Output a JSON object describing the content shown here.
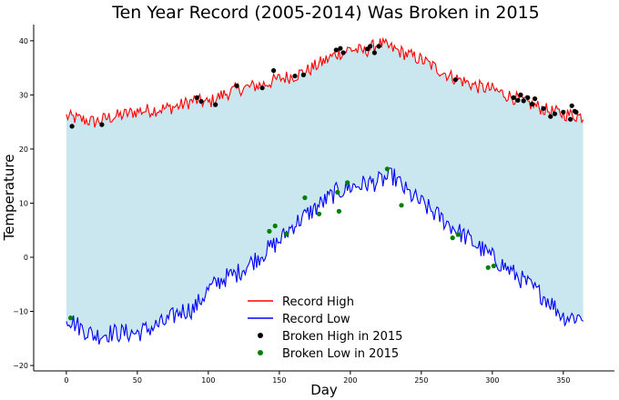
{
  "chart_data": {
    "type": "line",
    "title": "Ten Year Record (2005-2014) Was Broken in 2015",
    "xlabel": "Day",
    "ylabel": "Temperature",
    "xlim": [
      -23,
      386
    ],
    "ylim": [
      -21,
      43
    ],
    "x_ticks": [
      0,
      50,
      100,
      150,
      200,
      250,
      300,
      350
    ],
    "y_ticks": [
      -20,
      -10,
      0,
      10,
      20,
      30,
      40
    ],
    "grid": false,
    "legend_position": "lower-center",
    "fill_between": {
      "color": "#add8e6",
      "opacity": 0.65
    },
    "series": [
      {
        "name": "Record High",
        "kind": "line",
        "color": "#ff0000",
        "x": [
          0,
          10,
          20,
          30,
          40,
          50,
          60,
          70,
          80,
          90,
          100,
          110,
          120,
          130,
          140,
          150,
          160,
          170,
          180,
          190,
          200,
          210,
          220,
          230,
          240,
          250,
          260,
          270,
          280,
          290,
          300,
          310,
          320,
          330,
          340,
          350,
          364
        ],
        "y": [
          26,
          25.5,
          25,
          25.8,
          26.3,
          27,
          27.2,
          27.5,
          28,
          29,
          28.5,
          30,
          31,
          31.5,
          32,
          33,
          33.5,
          34.5,
          36,
          37.5,
          38.5,
          38,
          39.5,
          38.5,
          37.5,
          36.5,
          35,
          33.5,
          32.5,
          31.5,
          31,
          30,
          29,
          28,
          27,
          26.5,
          26
        ]
      },
      {
        "name": "Record Low",
        "kind": "line",
        "color": "#0000ff",
        "x": [
          0,
          10,
          20,
          30,
          40,
          50,
          60,
          70,
          80,
          90,
          100,
          110,
          120,
          130,
          140,
          150,
          160,
          170,
          180,
          190,
          200,
          210,
          220,
          230,
          240,
          250,
          260,
          270,
          280,
          290,
          300,
          310,
          320,
          330,
          340,
          350,
          364
        ],
        "y": [
          -11,
          -13,
          -14.5,
          -14,
          -14,
          -14,
          -13,
          -12,
          -10,
          -9.5,
          -6,
          -4,
          -3,
          -1,
          1,
          3,
          6,
          8,
          10,
          12,
          13,
          13.5,
          14,
          15,
          12,
          10,
          8,
          6,
          4,
          2,
          0,
          -2,
          -4,
          -6,
          -8,
          -11,
          -11
        ]
      },
      {
        "name": "Broken High in 2015",
        "kind": "scatter",
        "color": "#000000",
        "x": [
          4,
          25,
          92,
          95,
          105,
          120,
          138,
          146,
          161,
          167,
          190,
          193,
          195,
          212,
          214,
          217,
          220,
          274,
          315,
          318,
          320,
          322,
          325,
          328,
          330,
          336,
          341,
          344,
          350,
          355,
          356,
          358,
          359
        ],
        "y": [
          24.2,
          24.5,
          29.5,
          28.8,
          28.2,
          31.7,
          31.3,
          34.5,
          33.5,
          33.7,
          38.3,
          38.6,
          37.8,
          38.5,
          39,
          37.8,
          39,
          32.8,
          29.5,
          29,
          30,
          28.9,
          29.5,
          28.3,
          29.3,
          27.5,
          26,
          26.5,
          26.8,
          25.5,
          28,
          27,
          26.8
        ]
      },
      {
        "name": "Broken Low in 2015",
        "kind": "scatter",
        "color": "#008000",
        "x": [
          3,
          143,
          147,
          155,
          168,
          178,
          191,
          192,
          198,
          226,
          236,
          272,
          276,
          297,
          301
        ],
        "y": [
          -11.2,
          4.8,
          5.8,
          4.3,
          11,
          8,
          12,
          8.5,
          13.8,
          16.3,
          9.6,
          3.6,
          4.2,
          -1.9,
          -1.6
        ]
      }
    ]
  }
}
